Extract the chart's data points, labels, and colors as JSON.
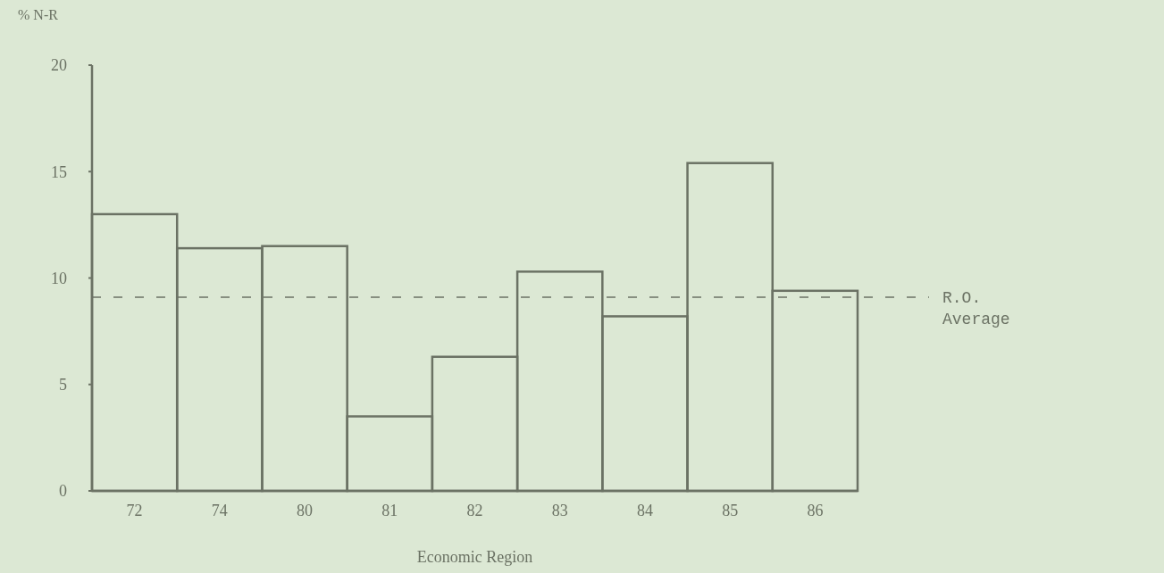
{
  "chart_data": {
    "type": "bar",
    "ylabel": "% N-R",
    "xlabel": "Economic Region",
    "categories": [
      "72",
      "74",
      "80",
      "81",
      "82",
      "83",
      "84",
      "85",
      "86"
    ],
    "values": [
      13.0,
      11.4,
      11.5,
      3.5,
      6.3,
      10.3,
      8.2,
      15.4,
      9.4
    ],
    "color": "#6b7264",
    "ylim": [
      0,
      20
    ],
    "yticks": [
      0,
      5,
      10,
      15,
      20
    ],
    "ref_lines": [
      {
        "axis": "y",
        "value": 9.1,
        "label": "R.O. Average",
        "line_style": "dashed",
        "color": "#6b7264"
      }
    ]
  }
}
